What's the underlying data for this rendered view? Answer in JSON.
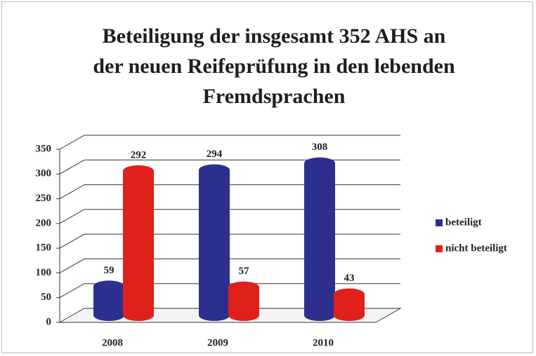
{
  "chart_data": {
    "type": "bar3d",
    "title": "Beteiligung der insgesamt 352 AHS an der neuen Reifeprüfung in den lebenden Fremdsprachen",
    "categories": [
      "2008",
      "2009",
      "2010"
    ],
    "series": [
      {
        "name": "beteiligt",
        "color": "#2d2f8f",
        "values": [
          59,
          294,
          308
        ]
      },
      {
        "name": "nicht beteiligt",
        "color": "#e0201c",
        "values": [
          292,
          57,
          43
        ]
      }
    ],
    "ylim": [
      0,
      350
    ],
    "yticks": [
      0,
      50,
      100,
      150,
      200,
      250,
      300,
      350
    ],
    "grid": true,
    "legend": "right"
  }
}
